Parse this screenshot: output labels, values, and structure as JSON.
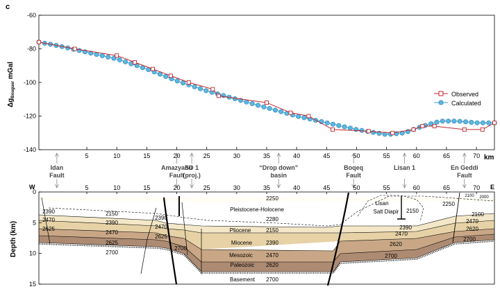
{
  "panel_label": "c",
  "chart_data": [
    {
      "type": "line",
      "ylabel_main": "Δg",
      "ylabel_sub": "Bouguer",
      "ylabel_unit": " mGal",
      "xlabel": "km",
      "xlim": [
        -3,
        73
      ],
      "ylim": [
        -140,
        -60
      ],
      "x_ticks": [
        5,
        10,
        15,
        20,
        25,
        30,
        35,
        40,
        45,
        50,
        55,
        60,
        65,
        70
      ],
      "y_ticks": [
        -60,
        -80,
        -100,
        -120,
        -140
      ],
      "legend": "right",
      "colors": {
        "observed": "#c0262d",
        "calculated": "#3a9fd0"
      },
      "series": [
        {
          "name": "Observed",
          "x": [
            -3,
            3,
            10,
            13,
            16,
            19,
            22,
            26,
            27,
            35,
            39,
            42,
            46,
            52,
            56,
            59.5,
            61,
            63,
            68,
            71,
            73
          ],
          "y": [
            -76,
            -80,
            -84,
            -88,
            -92,
            -96,
            -100,
            -104,
            -108,
            -112,
            -118,
            -120,
            -128,
            -129,
            -130,
            -128,
            -126,
            -126,
            -128,
            -128,
            -124
          ]
        },
        {
          "name": "Calculated",
          "x": [
            -3,
            0,
            5,
            10,
            15,
            20,
            25,
            30,
            35,
            40,
            45,
            50,
            55,
            58,
            61,
            64,
            67,
            70,
            73
          ],
          "y": [
            -76,
            -78,
            -82,
            -86,
            -92,
            -99,
            -105,
            -110,
            -115,
            -120,
            -124,
            -128,
            -131,
            -130,
            -126,
            -123,
            -123,
            -124,
            -124
          ]
        }
      ]
    },
    {
      "type": "other",
      "ylabel": "Depth (km)",
      "ylim": [
        0,
        15
      ],
      "y_ticks": [
        0,
        5,
        10,
        15
      ],
      "x_ticks": [
        5,
        10,
        15,
        20,
        25,
        30,
        35,
        40,
        45,
        50,
        55,
        60,
        65,
        70
      ],
      "left_end": "W",
      "right_end": "E",
      "colors": {
        "pleistocene": "#fffdf5",
        "pliocene": "#f3e7c8",
        "miocene": "#e6d2a6",
        "mesozoic": "#c9a786",
        "paleozoic": "#ad8b72",
        "basement": "#ffffff"
      },
      "location_labels": [
        {
          "line1": "Idan",
          "line2": "Fault",
          "x": 0
        },
        {
          "line1": "Amazyahu",
          "line2": "Fault",
          "x": 20
        },
        {
          "line1": "SD 1",
          "line2": "(proj.)",
          "x": 22.5
        },
        {
          "line1": "“Drop down”",
          "line2": "basin",
          "x": 37
        },
        {
          "line1": "Boqeq",
          "line2": "Fault",
          "x": 49.5
        },
        {
          "line1": "Lisan 1",
          "line2": "",
          "x": 58
        },
        {
          "line1": "En Geddi",
          "line2": "Fault",
          "x": 68
        }
      ],
      "unit_labels": [
        "Pleistocene-Holocene",
        "Pliocene",
        "Miocene",
        "Mesozoic",
        "Paleozoic",
        "Basement",
        "Lisan",
        "Salt Diapir"
      ],
      "density_labels": [
        "2250",
        "2280",
        "2150",
        "2390",
        "2470",
        "2620",
        "2700",
        "2390",
        "2470",
        "2625",
        "2150",
        "2390",
        "2470",
        "2625",
        "2700",
        "2390",
        "2470",
        "2625",
        "2700",
        "2150",
        "2390",
        "2470",
        "2620",
        "2700",
        "2250",
        "2100",
        "2000",
        "2100",
        "2470",
        "2620",
        "2700"
      ]
    }
  ]
}
